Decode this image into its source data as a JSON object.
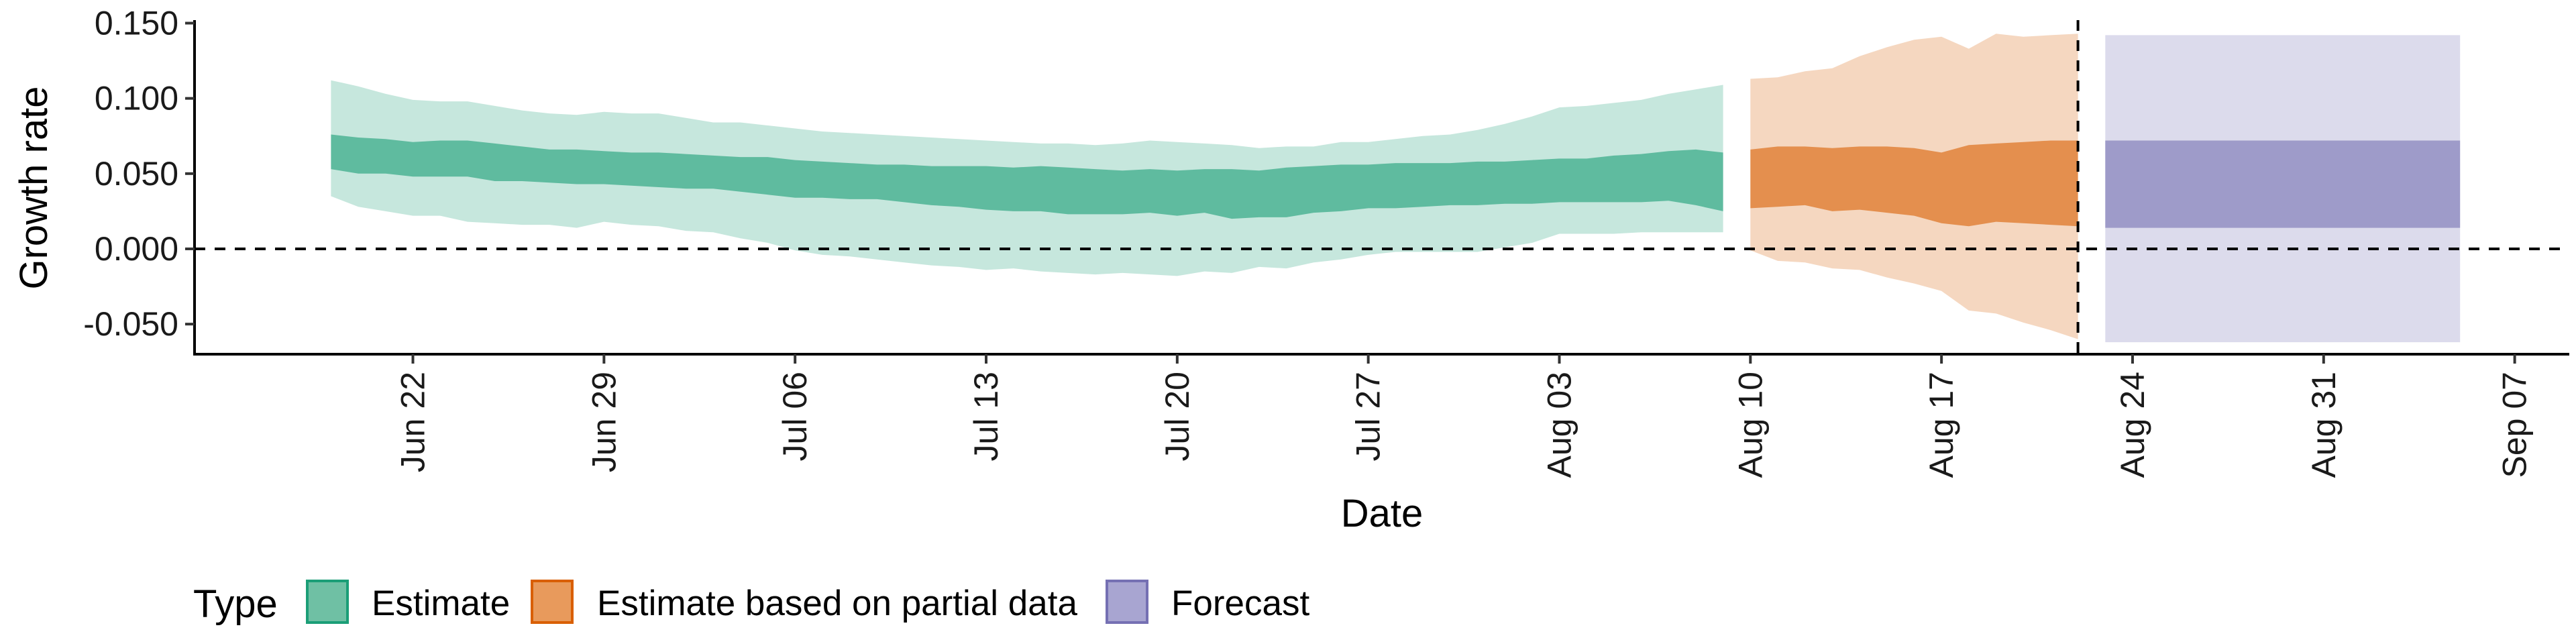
{
  "chart_data": {
    "type": "area",
    "title": "",
    "xlabel": "Date",
    "ylabel": "Growth rate",
    "x_range": [
      "2022-06-14",
      "2022-09-09"
    ],
    "ylim": [
      -0.07,
      0.152
    ],
    "y_ticks": [
      0.15,
      0.1,
      0.05,
      0.0,
      -0.05
    ],
    "y_tick_labels": [
      "0.150",
      "0.100",
      "0.050",
      "0.000",
      "-0.050"
    ],
    "x_ticks": [
      "2022-06-22",
      "2022-06-29",
      "2022-07-06",
      "2022-07-13",
      "2022-07-20",
      "2022-07-27",
      "2022-08-03",
      "2022-08-10",
      "2022-08-17",
      "2022-08-24",
      "2022-08-31",
      "2022-09-07"
    ],
    "x_tick_labels": [
      "Jun 22",
      "Jun 29",
      "Jul 06",
      "Jul 13",
      "Jul 20",
      "Jul 27",
      "Aug 03",
      "Aug 10",
      "Aug 17",
      "Aug 24",
      "Aug 31",
      "Sep 07"
    ],
    "reference_lines": [
      {
        "axis": "y",
        "value": 0.0,
        "style": "dashed"
      },
      {
        "axis": "x",
        "value": "2022-08-22",
        "style": "dashed"
      }
    ],
    "grid": false,
    "legend": {
      "title": "Type",
      "position": "bottom-left",
      "entries": [
        "Estimate",
        "Estimate based on partial data",
        "Forecast"
      ]
    },
    "series": [
      {
        "name": "Estimate",
        "color": "#1b9e77",
        "dates": [
          "2022-06-19",
          "2022-06-20",
          "2022-06-21",
          "2022-06-22",
          "2022-06-23",
          "2022-06-24",
          "2022-06-25",
          "2022-06-26",
          "2022-06-27",
          "2022-06-28",
          "2022-06-29",
          "2022-06-30",
          "2022-07-01",
          "2022-07-02",
          "2022-07-03",
          "2022-07-04",
          "2022-07-05",
          "2022-07-06",
          "2022-07-07",
          "2022-07-08",
          "2022-07-09",
          "2022-07-10",
          "2022-07-11",
          "2022-07-12",
          "2022-07-13",
          "2022-07-14",
          "2022-07-15",
          "2022-07-16",
          "2022-07-17",
          "2022-07-18",
          "2022-07-19",
          "2022-07-20",
          "2022-07-21",
          "2022-07-22",
          "2022-07-23",
          "2022-07-24",
          "2022-07-25",
          "2022-07-26",
          "2022-07-27",
          "2022-07-28",
          "2022-07-29",
          "2022-07-30",
          "2022-07-31",
          "2022-08-01",
          "2022-08-02",
          "2022-08-03",
          "2022-08-04",
          "2022-08-05",
          "2022-08-06",
          "2022-08-07",
          "2022-08-08",
          "2022-08-09"
        ],
        "lower_90": [
          0.035,
          0.028,
          0.025,
          0.022,
          0.022,
          0.018,
          0.017,
          0.016,
          0.016,
          0.014,
          0.018,
          0.016,
          0.015,
          0.012,
          0.011,
          0.007,
          0.004,
          -0.001,
          -0.004,
          -0.005,
          -0.007,
          -0.009,
          -0.011,
          -0.012,
          -0.014,
          -0.013,
          -0.015,
          -0.016,
          -0.017,
          -0.016,
          -0.017,
          -0.018,
          -0.015,
          -0.016,
          -0.012,
          -0.013,
          -0.009,
          -0.007,
          -0.004,
          -0.002,
          -0.002,
          -0.002,
          -0.002,
          0.001,
          0.004,
          0.01,
          0.01,
          0.01,
          0.011,
          0.011,
          0.011,
          0.011
        ],
        "lower_50": [
          0.053,
          0.05,
          0.05,
          0.048,
          0.048,
          0.048,
          0.045,
          0.045,
          0.044,
          0.043,
          0.043,
          0.042,
          0.041,
          0.04,
          0.04,
          0.038,
          0.036,
          0.034,
          0.034,
          0.033,
          0.033,
          0.031,
          0.029,
          0.028,
          0.026,
          0.025,
          0.025,
          0.023,
          0.023,
          0.023,
          0.024,
          0.022,
          0.024,
          0.02,
          0.021,
          0.021,
          0.024,
          0.025,
          0.027,
          0.027,
          0.028,
          0.029,
          0.029,
          0.03,
          0.03,
          0.031,
          0.031,
          0.031,
          0.031,
          0.032,
          0.029,
          0.025
        ],
        "upper_50": [
          0.076,
          0.074,
          0.073,
          0.071,
          0.072,
          0.072,
          0.07,
          0.068,
          0.066,
          0.066,
          0.065,
          0.064,
          0.064,
          0.063,
          0.062,
          0.061,
          0.061,
          0.059,
          0.058,
          0.057,
          0.056,
          0.056,
          0.055,
          0.055,
          0.055,
          0.054,
          0.055,
          0.054,
          0.053,
          0.052,
          0.053,
          0.052,
          0.053,
          0.053,
          0.052,
          0.054,
          0.055,
          0.056,
          0.056,
          0.057,
          0.057,
          0.057,
          0.058,
          0.058,
          0.059,
          0.06,
          0.06,
          0.062,
          0.063,
          0.065,
          0.066,
          0.064
        ],
        "upper_90": [
          0.112,
          0.108,
          0.103,
          0.099,
          0.098,
          0.098,
          0.095,
          0.092,
          0.09,
          0.089,
          0.091,
          0.09,
          0.09,
          0.087,
          0.084,
          0.084,
          0.082,
          0.08,
          0.078,
          0.077,
          0.076,
          0.075,
          0.074,
          0.073,
          0.072,
          0.071,
          0.07,
          0.07,
          0.069,
          0.07,
          0.072,
          0.071,
          0.07,
          0.069,
          0.067,
          0.068,
          0.068,
          0.071,
          0.071,
          0.073,
          0.075,
          0.076,
          0.079,
          0.083,
          0.088,
          0.094,
          0.095,
          0.097,
          0.099,
          0.103,
          0.106,
          0.109
        ]
      },
      {
        "name": "Estimate based on partial data",
        "color": "#d95f02",
        "dates": [
          "2022-08-10",
          "2022-08-11",
          "2022-08-12",
          "2022-08-13",
          "2022-08-14",
          "2022-08-15",
          "2022-08-16",
          "2022-08-17",
          "2022-08-18",
          "2022-08-19",
          "2022-08-20",
          "2022-08-21",
          "2022-08-22"
        ],
        "lower_90": [
          -0.001,
          -0.008,
          -0.009,
          -0.013,
          -0.014,
          -0.019,
          -0.023,
          -0.028,
          -0.041,
          -0.043,
          -0.049,
          -0.054,
          -0.06
        ],
        "lower_50": [
          0.027,
          0.028,
          0.029,
          0.025,
          0.026,
          0.024,
          0.022,
          0.017,
          0.015,
          0.018,
          0.017,
          0.016,
          0.015
        ],
        "upper_50": [
          0.066,
          0.068,
          0.068,
          0.067,
          0.068,
          0.068,
          0.067,
          0.064,
          0.069,
          0.07,
          0.071,
          0.072,
          0.072
        ],
        "upper_90": [
          0.113,
          0.114,
          0.118,
          0.12,
          0.128,
          0.134,
          0.139,
          0.141,
          0.133,
          0.143,
          0.141,
          0.142,
          0.143
        ]
      },
      {
        "name": "Forecast",
        "color": "#7570b3",
        "dates": [
          "2022-08-23",
          "2022-09-05"
        ],
        "lower_90": [
          -0.062,
          -0.062
        ],
        "lower_50": [
          0.014,
          0.014
        ],
        "upper_50": [
          0.072,
          0.072
        ],
        "upper_90": [
          0.142,
          0.142
        ]
      }
    ]
  }
}
